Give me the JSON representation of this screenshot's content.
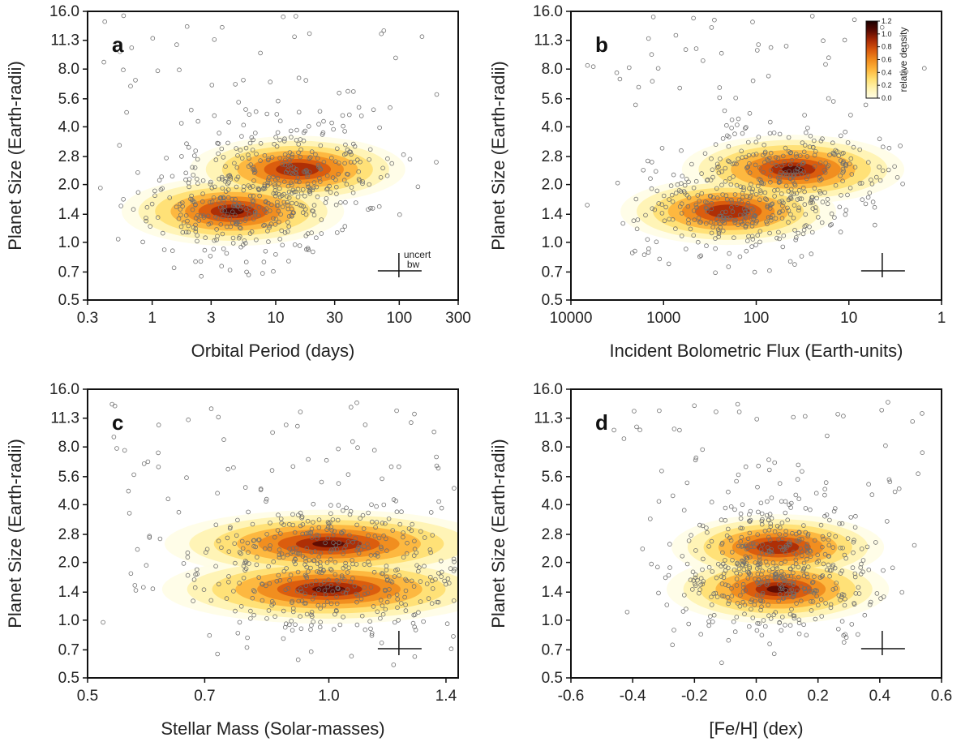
{
  "figure": {
    "ylabel": "Planet Size (Earth-radii)"
  },
  "chart_data": [
    {
      "panel": "a",
      "type": "scatter",
      "xlabel": "Orbital Period (days)",
      "ylabel": "Planet Size (Earth-radii)",
      "xscale": "log",
      "yscale": "log",
      "xlim": [
        0.3,
        300
      ],
      "ylim": [
        0.5,
        16.0
      ],
      "xticks": [
        0.3,
        1,
        3,
        10,
        30,
        100,
        300
      ],
      "xticklabels": [
        "0.3",
        "1",
        "3",
        "10",
        "30",
        "100",
        "300"
      ],
      "yticks": [
        0.5,
        0.7,
        1.0,
        1.4,
        2.0,
        2.8,
        4.0,
        5.6,
        8.0,
        11.3,
        16.0
      ],
      "yticklabels": [
        "0.5",
        "0.7",
        "1.0",
        "1.4",
        "2.0",
        "2.8",
        "4.0",
        "5.6",
        "8.0",
        "11.3",
        "16.0"
      ],
      "density_peaks": [
        {
          "x": 4.5,
          "y": 1.45,
          "weight": 1.0
        },
        {
          "x": 15,
          "y": 2.4,
          "weight": 0.9
        }
      ],
      "annotations": {
        "uncert": "uncert",
        "bw": "bw"
      }
    },
    {
      "panel": "b",
      "type": "scatter",
      "xlabel": "Incident Bolometric Flux (Earth-units)",
      "ylabel": "Planet Size (Earth-radii)",
      "xscale": "log",
      "x_reversed": true,
      "yscale": "log",
      "xlim": [
        10000,
        1
      ],
      "ylim": [
        0.5,
        16.0
      ],
      "xticks": [
        10000,
        1000,
        100,
        10,
        1
      ],
      "xticklabels": [
        "10000",
        "1000",
        "100",
        "10",
        "1"
      ],
      "yticks": [
        0.5,
        0.7,
        1.0,
        1.4,
        2.0,
        2.8,
        4.0,
        5.6,
        8.0,
        11.3,
        16.0
      ],
      "yticklabels": [
        "0.5",
        "0.7",
        "1.0",
        "1.4",
        "2.0",
        "2.8",
        "4.0",
        "5.6",
        "8.0",
        "11.3",
        "16.0"
      ],
      "density_peaks": [
        {
          "x": 200,
          "y": 1.45,
          "weight": 0.9
        },
        {
          "x": 40,
          "y": 2.4,
          "weight": 1.0
        }
      ],
      "colorbar": {
        "label": "relative density",
        "ticks": [
          "0.0",
          "0.2",
          "0.4",
          "0.6",
          "0.8",
          "1.0",
          "1.2"
        ]
      }
    },
    {
      "panel": "c",
      "type": "scatter",
      "xlabel": "Stellar Mass (Solar-masses)",
      "ylabel": "Planet Size (Earth-radii)",
      "xscale": "log",
      "yscale": "log",
      "xlim": [
        0.5,
        1.45
      ],
      "ylim": [
        0.5,
        16.0
      ],
      "xticks": [
        0.5,
        0.7,
        1.0,
        1.4
      ],
      "xticklabels": [
        "0.5",
        "0.7",
        "1.0",
        "1.4"
      ],
      "yticks": [
        0.5,
        0.7,
        1.0,
        1.4,
        2.0,
        2.8,
        4.0,
        5.6,
        8.0,
        11.3,
        16.0
      ],
      "yticklabels": [
        "0.5",
        "0.7",
        "1.0",
        "1.4",
        "2.0",
        "2.8",
        "4.0",
        "5.6",
        "8.0",
        "11.3",
        "16.0"
      ],
      "density_peaks": [
        {
          "x": 1.0,
          "y": 1.45,
          "weight": 1.0
        },
        {
          "x": 1.0,
          "y": 2.5,
          "weight": 0.95
        }
      ]
    },
    {
      "panel": "d",
      "type": "scatter",
      "xlabel": "[Fe/H] (dex)",
      "ylabel": "Planet Size (Earth-radii)",
      "xscale": "linear",
      "yscale": "log",
      "xlim": [
        -0.6,
        0.6
      ],
      "ylim": [
        0.5,
        16.0
      ],
      "xticks": [
        -0.6,
        -0.4,
        -0.2,
        0.0,
        0.2,
        0.4,
        0.6
      ],
      "xticklabels": [
        "-0.6",
        "-0.4",
        "-0.2",
        "0.0",
        "0.2",
        "0.4",
        "0.6"
      ],
      "yticks": [
        0.5,
        0.7,
        1.0,
        1.4,
        2.0,
        2.8,
        4.0,
        5.6,
        8.0,
        11.3,
        16.0
      ],
      "yticklabels": [
        "0.5",
        "0.7",
        "1.0",
        "1.4",
        "2.0",
        "2.8",
        "4.0",
        "5.6",
        "8.0",
        "11.3",
        "16.0"
      ],
      "density_peaks": [
        {
          "x": 0.07,
          "y": 1.45,
          "weight": 1.0
        },
        {
          "x": 0.07,
          "y": 2.4,
          "weight": 0.85
        }
      ]
    }
  ],
  "colors": {
    "point_edge": "#6e6e6e",
    "axis": "#111111",
    "density_ramp": [
      "#fffde6",
      "#fff3b0",
      "#ffdf70",
      "#fdb43a",
      "#f08a1c",
      "#d8580c",
      "#a82a05",
      "#5a0a02",
      "#1a0000"
    ]
  }
}
